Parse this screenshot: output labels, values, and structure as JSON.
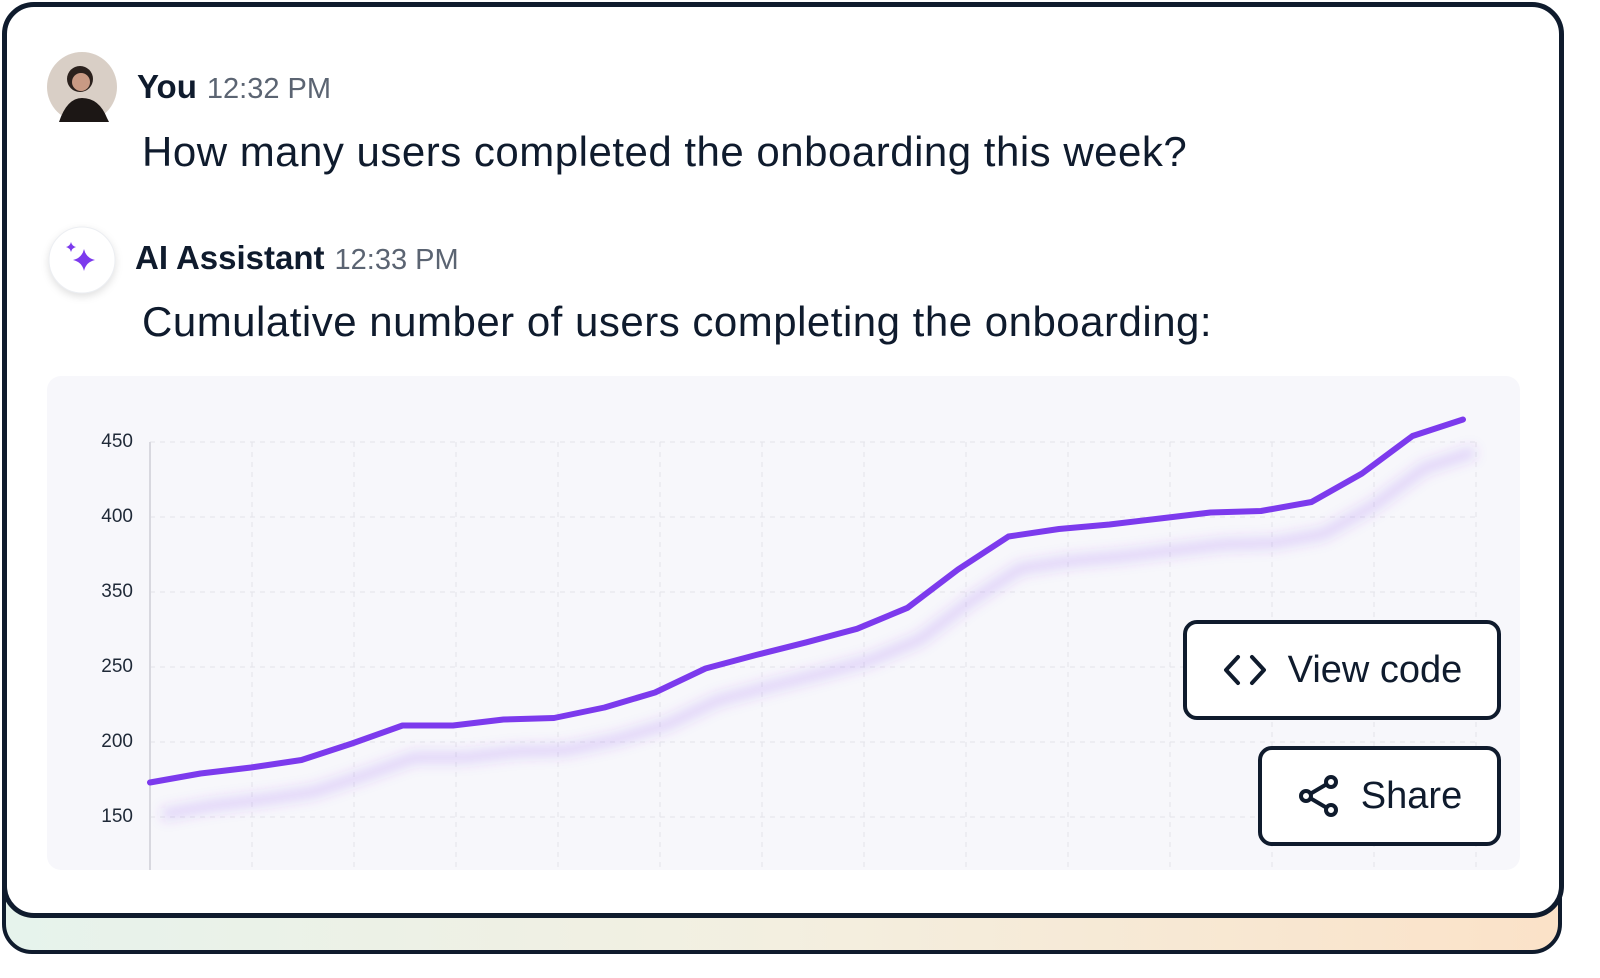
{
  "messages": [
    {
      "author": "You",
      "time": "12:32 PM",
      "text": "How many users completed the onboarding this week?"
    },
    {
      "author": "AI Assistant",
      "time": "12:33 PM",
      "text": "Cumulative number of users completing the onboarding:"
    }
  ],
  "chart_data": {
    "type": "line",
    "yticks": [
      450,
      400,
      350,
      250,
      200,
      150
    ],
    "color": "#7c3aed",
    "grid": true,
    "values": [
      173,
      179,
      183,
      188,
      199,
      211,
      211,
      215,
      216,
      223,
      233,
      249,
      266,
      283,
      301,
      329,
      365,
      387,
      392,
      395,
      399,
      403,
      404,
      410,
      429,
      454,
      465
    ]
  },
  "actions": [
    "View code",
    "Share"
  ]
}
